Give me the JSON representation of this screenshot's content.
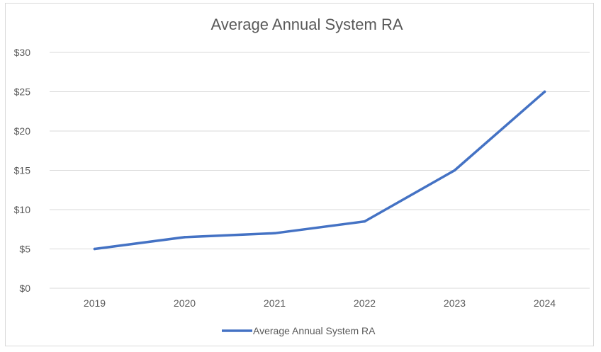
{
  "chart_data": {
    "type": "line",
    "title": "Average Annual System RA",
    "xlabel": "",
    "ylabel": "",
    "categories": [
      "2019",
      "2020",
      "2021",
      "2022",
      "2023",
      "2024"
    ],
    "y_ticks": [
      "$0",
      "$5",
      "$10",
      "$15",
      "$20",
      "$25",
      "$30"
    ],
    "ylim": [
      0,
      30
    ],
    "grid": true,
    "legend_position": "bottom",
    "series": [
      {
        "name": "Average Annual System RA",
        "values": [
          5.0,
          6.5,
          7.0,
          8.5,
          15.0,
          25.0
        ],
        "color": "#4472c4"
      }
    ]
  }
}
